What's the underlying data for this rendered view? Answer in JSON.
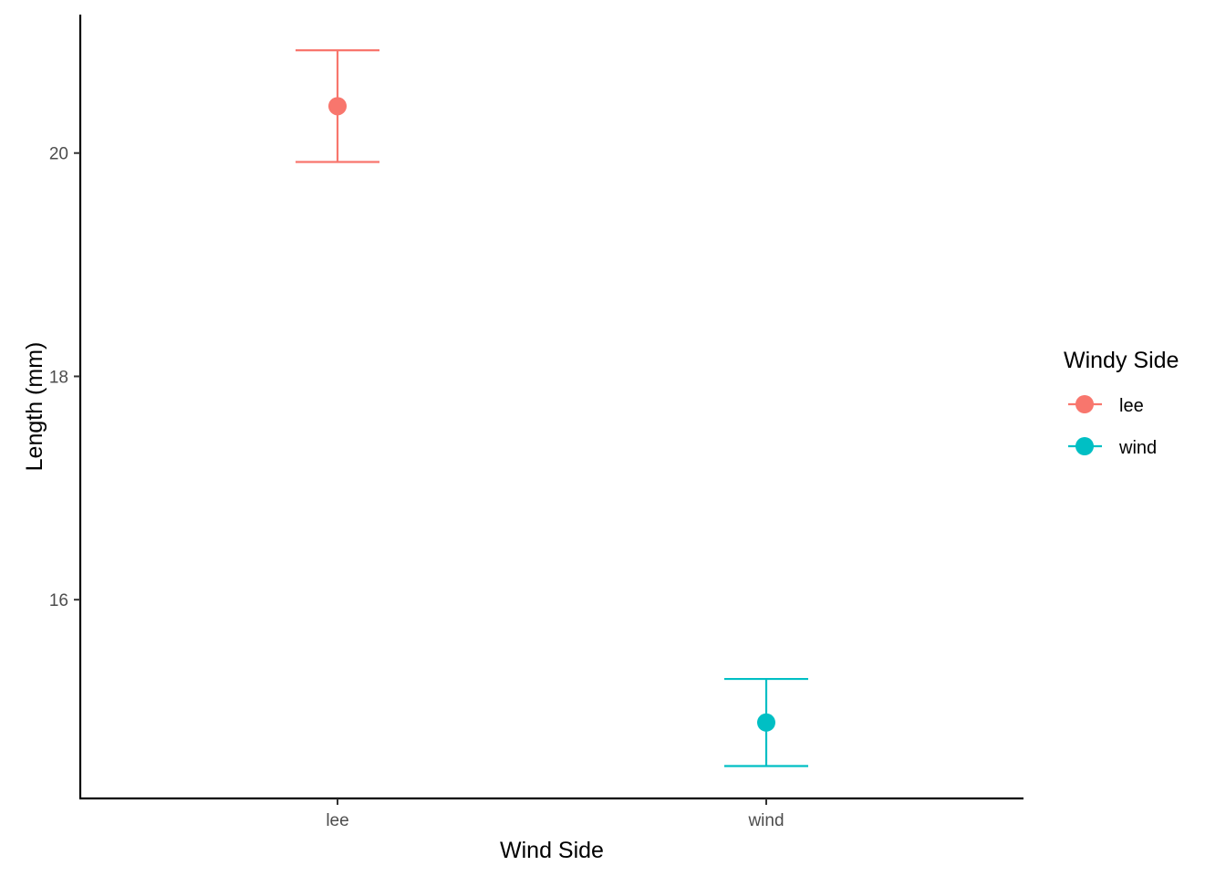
{
  "chart_data": {
    "type": "scatter",
    "title": "",
    "xlabel": "Wind Side",
    "ylabel": "Length (mm)",
    "categories": [
      "lee",
      "wind"
    ],
    "y_ticks": [
      16,
      18,
      20
    ],
    "y_tick_labels": [
      "16",
      "18",
      "20"
    ],
    "ylim": [
      14.22,
      21.24
    ],
    "grid": false,
    "legend": {
      "title": "Windy Side",
      "position": "right",
      "entries": [
        "lee",
        "wind"
      ]
    },
    "series": [
      {
        "name": "lee",
        "color": "#F8766D",
        "x": "lee",
        "y": 20.42,
        "ymin": 19.92,
        "ymax": 20.92
      },
      {
        "name": "wind",
        "color": "#00BFC4",
        "x": "wind",
        "y": 14.9,
        "ymin": 14.51,
        "ymax": 15.29
      }
    ]
  }
}
